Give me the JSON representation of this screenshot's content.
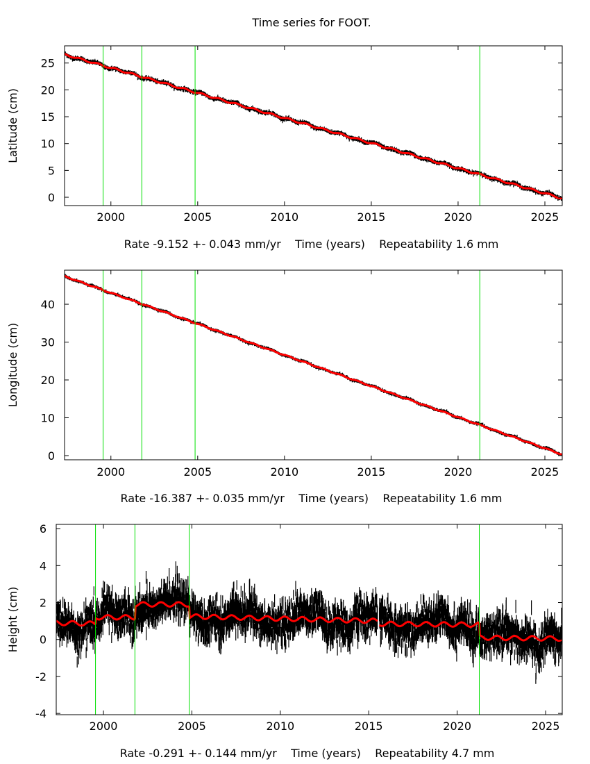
{
  "title": "Time series for FOOT.",
  "chart_data": [
    {
      "type": "scatter",
      "ylabel": "Latitude (cm)",
      "xlabel": "Rate -9.152 +- 0.043 mm/yr    Time (years)    Repeatability 1.6 mm",
      "xlim": [
        1997.33,
        2026.0
      ],
      "ylim": [
        -1.55,
        28.2
      ],
      "xticks": [
        2000,
        2005,
        2010,
        2015,
        2020,
        2025
      ],
      "yticks": [
        0,
        5,
        10,
        15,
        20,
        25
      ],
      "event_lines": [
        1999.55,
        2001.78,
        2004.85,
        2021.25
      ],
      "model": {
        "segments": [
          {
            "start": 1997.33,
            "end": 2026.0,
            "y_start": 26.6,
            "y_end": -0.2
          }
        ],
        "annual_amplitude": 0.15
      },
      "scatter_sd": 0.25,
      "colors": {
        "points": "#000000",
        "model": "#ff0000",
        "events": "#00e000"
      },
      "grid": false
    },
    {
      "type": "scatter",
      "ylabel": "Longitude (cm)",
      "xlabel": "Rate -16.387 +- 0.035 mm/yr    Time (years)    Repeatability 1.6 mm",
      "xlim": [
        1997.33,
        2026.0
      ],
      "ylim": [
        -1.1,
        49.0
      ],
      "xticks": [
        2000,
        2005,
        2010,
        2015,
        2020,
        2025
      ],
      "yticks": [
        0,
        10,
        20,
        30,
        40
      ],
      "event_lines": [
        1999.55,
        2001.78,
        2004.85,
        2021.25
      ],
      "model": {
        "segments": [
          {
            "start": 1997.33,
            "end": 2026.0,
            "y_start": 47.4,
            "y_end": 0.3
          }
        ],
        "annual_amplitude": 0.12
      },
      "scatter_sd": 0.25,
      "colors": {
        "points": "#000000",
        "model": "#ff0000",
        "events": "#00e000"
      },
      "grid": false
    },
    {
      "type": "scatter",
      "ylabel": "Height (cm)",
      "xlabel": "Rate -0.291 +- 0.144 mm/yr    Time (years)    Repeatability 4.7 mm",
      "xlim": [
        1997.33,
        2025.94
      ],
      "ylim": [
        -4.07,
        6.23
      ],
      "xticks": [
        2000,
        2005,
        2010,
        2015,
        2020,
        2025
      ],
      "yticks": [
        -4,
        -2,
        0,
        2,
        4,
        6
      ],
      "event_lines": [
        1999.55,
        2001.78,
        2004.85,
        2021.25
      ],
      "model": {
        "segments": [
          {
            "start": 1997.33,
            "end": 1999.55,
            "y_start": 0.9,
            "y_end": 0.85
          },
          {
            "start": 1999.55,
            "end": 2001.78,
            "y_start": 1.2,
            "y_end": 1.2
          },
          {
            "start": 2001.78,
            "end": 2004.85,
            "y_start": 1.9,
            "y_end": 1.9
          },
          {
            "start": 2004.85,
            "end": 2015.5,
            "y_start": 1.25,
            "y_end": 1.0
          },
          {
            "start": 2015.6,
            "end": 2021.25,
            "y_start": 0.85,
            "y_end": 0.8
          },
          {
            "start": 2021.25,
            "end": 2025.94,
            "y_start": 0.1,
            "y_end": 0.05
          }
        ],
        "annual_amplitude": 0.12
      },
      "scatter_sd": 0.5,
      "colors": {
        "points": "#000000",
        "model": "#ff0000",
        "events": "#00e000"
      },
      "grid": false
    }
  ]
}
